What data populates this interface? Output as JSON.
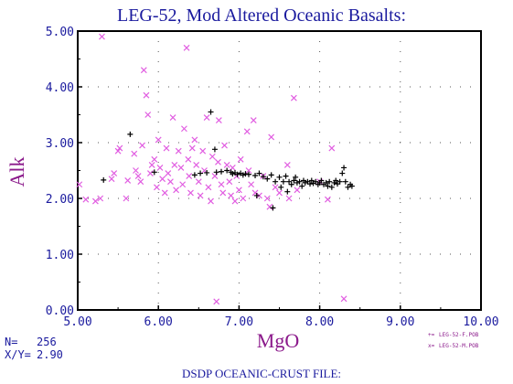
{
  "chart_data": {
    "type": "scatter",
    "title": "LEG-52, Mod Altered Oceanic Basalts:",
    "xlabel": "MgO",
    "ylabel": "Alk",
    "xlim": [
      5.0,
      10.0
    ],
    "ylim": [
      0.0,
      5.0
    ],
    "x_ticks": [
      "5.00",
      "6.00",
      "7.00",
      "8.00",
      "9.00",
      "10.00"
    ],
    "y_ticks": [
      "0.00",
      "1.00",
      "2.00",
      "3.00",
      "4.00",
      "5.00"
    ],
    "grid": "dotted",
    "legend_position": "bottom-right",
    "series": [
      {
        "name": "LEG-52-F.POB",
        "legend_symbol": "+=",
        "marker": "plus",
        "color": "#000000",
        "points": [
          [
            5.32,
            2.33
          ],
          [
            5.65,
            3.15
          ],
          [
            5.95,
            2.47
          ],
          [
            6.45,
            2.42
          ],
          [
            6.52,
            2.45
          ],
          [
            6.6,
            2.46
          ],
          [
            6.65,
            3.55
          ],
          [
            6.7,
            2.88
          ],
          [
            6.72,
            2.47
          ],
          [
            6.78,
            2.48
          ],
          [
            6.85,
            2.5
          ],
          [
            6.9,
            2.47
          ],
          [
            6.92,
            2.44
          ],
          [
            6.95,
            2.46
          ],
          [
            6.98,
            2.43
          ],
          [
            7.02,
            2.45
          ],
          [
            7.05,
            2.42
          ],
          [
            7.08,
            2.44
          ],
          [
            7.12,
            2.43
          ],
          [
            7.2,
            2.41
          ],
          [
            7.22,
            2.05
          ],
          [
            7.25,
            2.45
          ],
          [
            7.3,
            2.39
          ],
          [
            7.35,
            2.35
          ],
          [
            7.4,
            2.42
          ],
          [
            7.42,
            1.83
          ],
          [
            7.45,
            2.3
          ],
          [
            7.5,
            2.38
          ],
          [
            7.52,
            2.2
          ],
          [
            7.55,
            2.3
          ],
          [
            7.58,
            2.4
          ],
          [
            7.6,
            2.12
          ],
          [
            7.62,
            2.3
          ],
          [
            7.65,
            2.25
          ],
          [
            7.68,
            2.32
          ],
          [
            7.7,
            2.38
          ],
          [
            7.72,
            2.28
          ],
          [
            7.75,
            2.3
          ],
          [
            7.78,
            2.22
          ],
          [
            7.8,
            2.32
          ],
          [
            7.82,
            2.28
          ],
          [
            7.85,
            2.3
          ],
          [
            7.88,
            2.26
          ],
          [
            7.9,
            2.32
          ],
          [
            7.92,
            2.27
          ],
          [
            7.95,
            2.3
          ],
          [
            7.98,
            2.25
          ],
          [
            8.0,
            2.28
          ],
          [
            8.02,
            2.32
          ],
          [
            8.05,
            2.25
          ],
          [
            8.08,
            2.28
          ],
          [
            8.1,
            2.22
          ],
          [
            8.12,
            2.3
          ],
          [
            8.15,
            2.2
          ],
          [
            8.18,
            2.28
          ],
          [
            8.2,
            2.32
          ],
          [
            8.22,
            2.26
          ],
          [
            8.25,
            2.3
          ],
          [
            8.28,
            2.45
          ],
          [
            8.3,
            2.55
          ],
          [
            8.32,
            2.3
          ],
          [
            8.35,
            2.2
          ],
          [
            8.38,
            2.25
          ],
          [
            8.4,
            2.22
          ]
        ]
      },
      {
        "name": "LEG-52-M.POB",
        "legend_symbol": "x=",
        "marker": "x",
        "color": "#e15ee1",
        "points": [
          [
            5.02,
            2.25
          ],
          [
            5.1,
            1.98
          ],
          [
            5.22,
            1.95
          ],
          [
            5.28,
            2.0
          ],
          [
            5.3,
            4.9
          ],
          [
            5.42,
            2.35
          ],
          [
            5.45,
            2.45
          ],
          [
            5.5,
            2.85
          ],
          [
            5.52,
            2.9
          ],
          [
            5.6,
            2.0
          ],
          [
            5.62,
            2.32
          ],
          [
            5.7,
            2.8
          ],
          [
            5.72,
            2.5
          ],
          [
            5.75,
            2.4
          ],
          [
            5.78,
            2.3
          ],
          [
            5.8,
            2.95
          ],
          [
            5.82,
            4.3
          ],
          [
            5.85,
            3.85
          ],
          [
            5.87,
            3.5
          ],
          [
            5.9,
            2.45
          ],
          [
            5.92,
            2.6
          ],
          [
            5.95,
            2.7
          ],
          [
            5.98,
            2.2
          ],
          [
            6.0,
            3.05
          ],
          [
            6.02,
            2.55
          ],
          [
            6.05,
            2.35
          ],
          [
            6.08,
            2.1
          ],
          [
            6.1,
            2.9
          ],
          [
            6.12,
            2.45
          ],
          [
            6.15,
            2.3
          ],
          [
            6.18,
            3.45
          ],
          [
            6.2,
            2.6
          ],
          [
            6.22,
            2.15
          ],
          [
            6.25,
            2.85
          ],
          [
            6.28,
            2.55
          ],
          [
            6.3,
            2.25
          ],
          [
            6.32,
            3.25
          ],
          [
            6.35,
            4.7
          ],
          [
            6.37,
            2.7
          ],
          [
            6.38,
            2.4
          ],
          [
            6.4,
            2.1
          ],
          [
            6.42,
            2.9
          ],
          [
            6.45,
            3.05
          ],
          [
            6.47,
            2.6
          ],
          [
            6.5,
            2.3
          ],
          [
            6.52,
            2.05
          ],
          [
            6.55,
            2.85
          ],
          [
            6.57,
            2.5
          ],
          [
            6.6,
            3.45
          ],
          [
            6.62,
            2.2
          ],
          [
            6.65,
            1.95
          ],
          [
            6.67,
            2.75
          ],
          [
            6.7,
            2.4
          ],
          [
            6.72,
            0.15
          ],
          [
            6.74,
            2.65
          ],
          [
            6.75,
            3.4
          ],
          [
            6.78,
            2.25
          ],
          [
            6.8,
            2.1
          ],
          [
            6.82,
            2.95
          ],
          [
            6.85,
            2.6
          ],
          [
            6.88,
            2.3
          ],
          [
            6.9,
            2.05
          ],
          [
            6.92,
            2.55
          ],
          [
            6.95,
            1.95
          ],
          [
            6.97,
            2.4
          ],
          [
            7.0,
            2.15
          ],
          [
            7.02,
            2.7
          ],
          [
            7.05,
            2.0
          ],
          [
            7.1,
            3.2
          ],
          [
            7.12,
            2.5
          ],
          [
            7.15,
            2.25
          ],
          [
            7.18,
            3.4
          ],
          [
            7.2,
            2.1
          ],
          [
            7.25,
            2.05
          ],
          [
            7.3,
            2.4
          ],
          [
            7.35,
            2.0
          ],
          [
            7.38,
            1.85
          ],
          [
            7.4,
            3.1
          ],
          [
            7.45,
            2.2
          ],
          [
            7.5,
            2.1
          ],
          [
            7.6,
            2.6
          ],
          [
            7.62,
            2.0
          ],
          [
            7.68,
            3.8
          ],
          [
            7.72,
            2.15
          ],
          [
            8.0,
            2.3
          ],
          [
            8.1,
            1.98
          ],
          [
            8.15,
            2.9
          ],
          [
            8.3,
            0.2
          ]
        ]
      }
    ]
  },
  "stats": {
    "n_label": "N=",
    "n_value": "256",
    "xy_label": "X/Y=",
    "xy_value": "2.90"
  },
  "footer": "DSDP OCEANIC-CRUST FILE:"
}
